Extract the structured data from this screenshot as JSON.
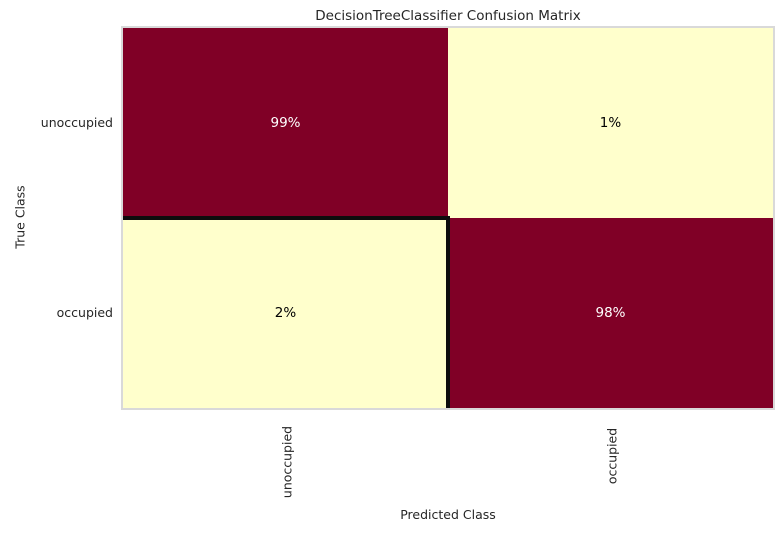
{
  "chart_data": {
    "type": "heatmap",
    "title": "DecisionTreeClassifier Confusion Matrix",
    "xlabel": "Predicted Class",
    "ylabel": "True Class",
    "x_categories": [
      "unoccupied",
      "occupied"
    ],
    "y_categories": [
      "unoccupied",
      "occupied"
    ],
    "values_percent": [
      [
        99,
        1
      ],
      [
        2,
        98
      ]
    ],
    "colormap": "YlOrRd",
    "legend_position": "none",
    "grid": false,
    "colors": {
      "high_cell": "#800026",
      "low_cell": "#ffffcc",
      "separator": "#0d0d0d",
      "plot_border": "#d9d9d9",
      "text": "#262626"
    },
    "cells": [
      {
        "true_class": "unoccupied",
        "predicted_class": "unoccupied",
        "value": 99,
        "label": "99%",
        "bg": "#800026",
        "text_color": "#ffffff"
      },
      {
        "true_class": "unoccupied",
        "predicted_class": "occupied",
        "value": 1,
        "label": "1%",
        "bg": "#ffffcc",
        "text_color": "#000000"
      },
      {
        "true_class": "occupied",
        "predicted_class": "unoccupied",
        "value": 2,
        "label": "2%",
        "bg": "#ffffcc",
        "text_color": "#000000"
      },
      {
        "true_class": "occupied",
        "predicted_class": "occupied",
        "value": 98,
        "label": "98%",
        "bg": "#800026",
        "text_color": "#ffffff"
      }
    ]
  }
}
